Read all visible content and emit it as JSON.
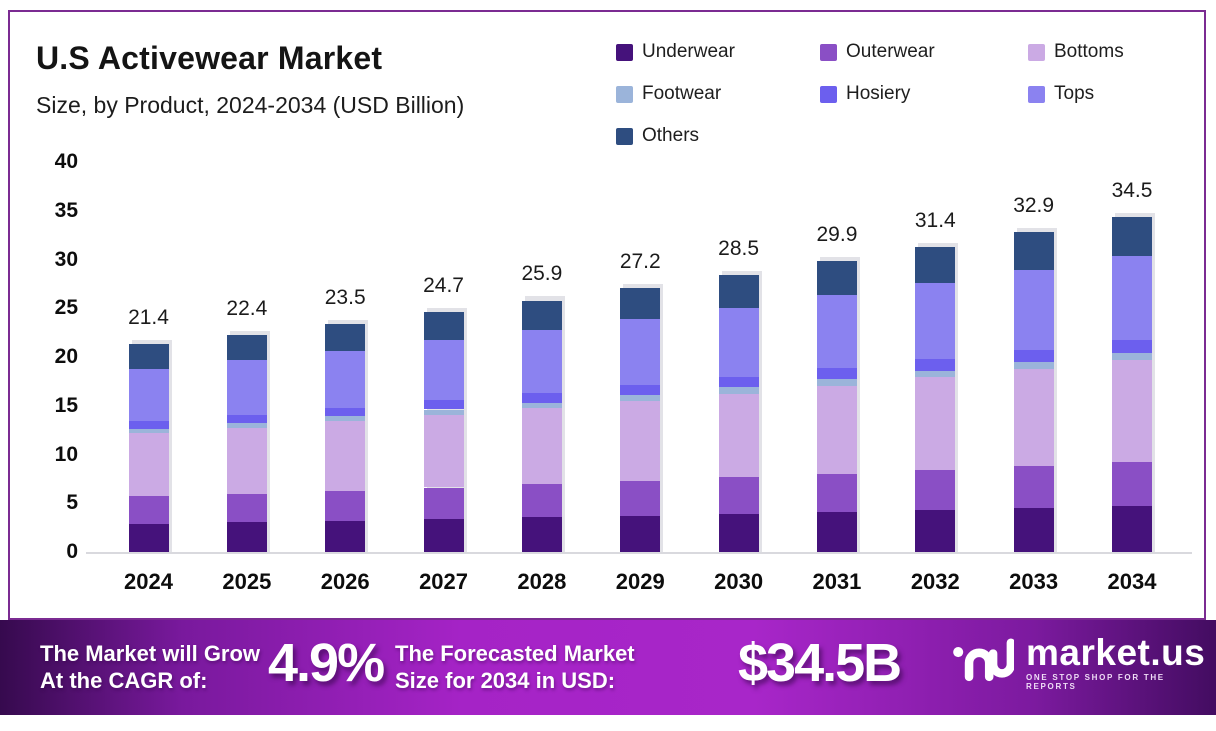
{
  "header": {
    "title": "U.S Activewear Market",
    "subtitle": "Size, by Product, 2024-2034 (USD Billion)"
  },
  "chart_data": {
    "type": "bar",
    "stacked": true,
    "title": "U.S Activewear Market Size, by Product, 2024-2034 (USD Billion)",
    "categories": [
      "2024",
      "2025",
      "2026",
      "2027",
      "2028",
      "2029",
      "2030",
      "2031",
      "2032",
      "2033",
      "2034"
    ],
    "totals": [
      21.4,
      22.4,
      23.5,
      24.7,
      25.9,
      27.2,
      28.5,
      29.9,
      31.4,
      32.9,
      34.5
    ],
    "series": [
      {
        "name": "Underwear",
        "color": "#45127b",
        "values": [
          3.02,
          3.16,
          3.31,
          3.48,
          3.65,
          3.84,
          4.02,
          4.22,
          4.43,
          4.64,
          4.86
        ]
      },
      {
        "name": "Outerwear",
        "color": "#8a4fc5",
        "values": [
          2.8,
          2.93,
          3.08,
          3.24,
          3.39,
          3.56,
          3.73,
          3.92,
          4.11,
          4.31,
          4.52
        ]
      },
      {
        "name": "Bottoms",
        "color": "#cbaae4",
        "values": [
          6.46,
          6.76,
          7.1,
          7.46,
          7.82,
          8.21,
          8.61,
          9.03,
          9.48,
          9.94,
          10.42
        ]
      },
      {
        "name": "Footwear",
        "color": "#9bb4da",
        "values": [
          0.47,
          0.49,
          0.52,
          0.54,
          0.57,
          0.6,
          0.63,
          0.66,
          0.69,
          0.72,
          0.76
        ]
      },
      {
        "name": "Hosiery",
        "color": "#6c5fee",
        "values": [
          0.81,
          0.85,
          0.89,
          0.94,
          0.98,
          1.03,
          1.08,
          1.14,
          1.19,
          1.25,
          1.31
        ]
      },
      {
        "name": "Tops",
        "color": "#8b82f0",
        "values": [
          5.33,
          5.58,
          5.85,
          6.15,
          6.45,
          6.77,
          7.1,
          7.45,
          7.82,
          8.19,
          8.59
        ]
      },
      {
        "name": "Others",
        "color": "#2e4d80",
        "values": [
          2.5,
          2.62,
          2.75,
          2.89,
          3.03,
          3.18,
          3.33,
          3.5,
          3.67,
          3.85,
          4.04
        ]
      }
    ],
    "xlabel": "",
    "ylabel": "",
    "ylim": [
      0,
      40
    ],
    "y_ticks": [
      40,
      35,
      30,
      25,
      20,
      15,
      10,
      5,
      0
    ],
    "grid": false,
    "legend_position": "top-right"
  },
  "banner": {
    "cagr_label_line1": "The Market will Grow",
    "cagr_label_line2": "At the CAGR of:",
    "cagr_value": "4.9%",
    "forecast_label_line1": "The Forecasted Market",
    "forecast_label_line2": "Size for 2034 in USD:",
    "forecast_value": "$34.5B",
    "brand": {
      "wordmark": "market.us",
      "tagline": "ONE STOP SHOP FOR THE REPORTS"
    }
  },
  "colors": {
    "card_border": "#7b2b92",
    "axis_line": "#d9d9de",
    "bar_shadow": "#e2e2e7",
    "banner_gradient_mid": "#a826c9",
    "banner_gradient_edge": "#3a0b55"
  }
}
